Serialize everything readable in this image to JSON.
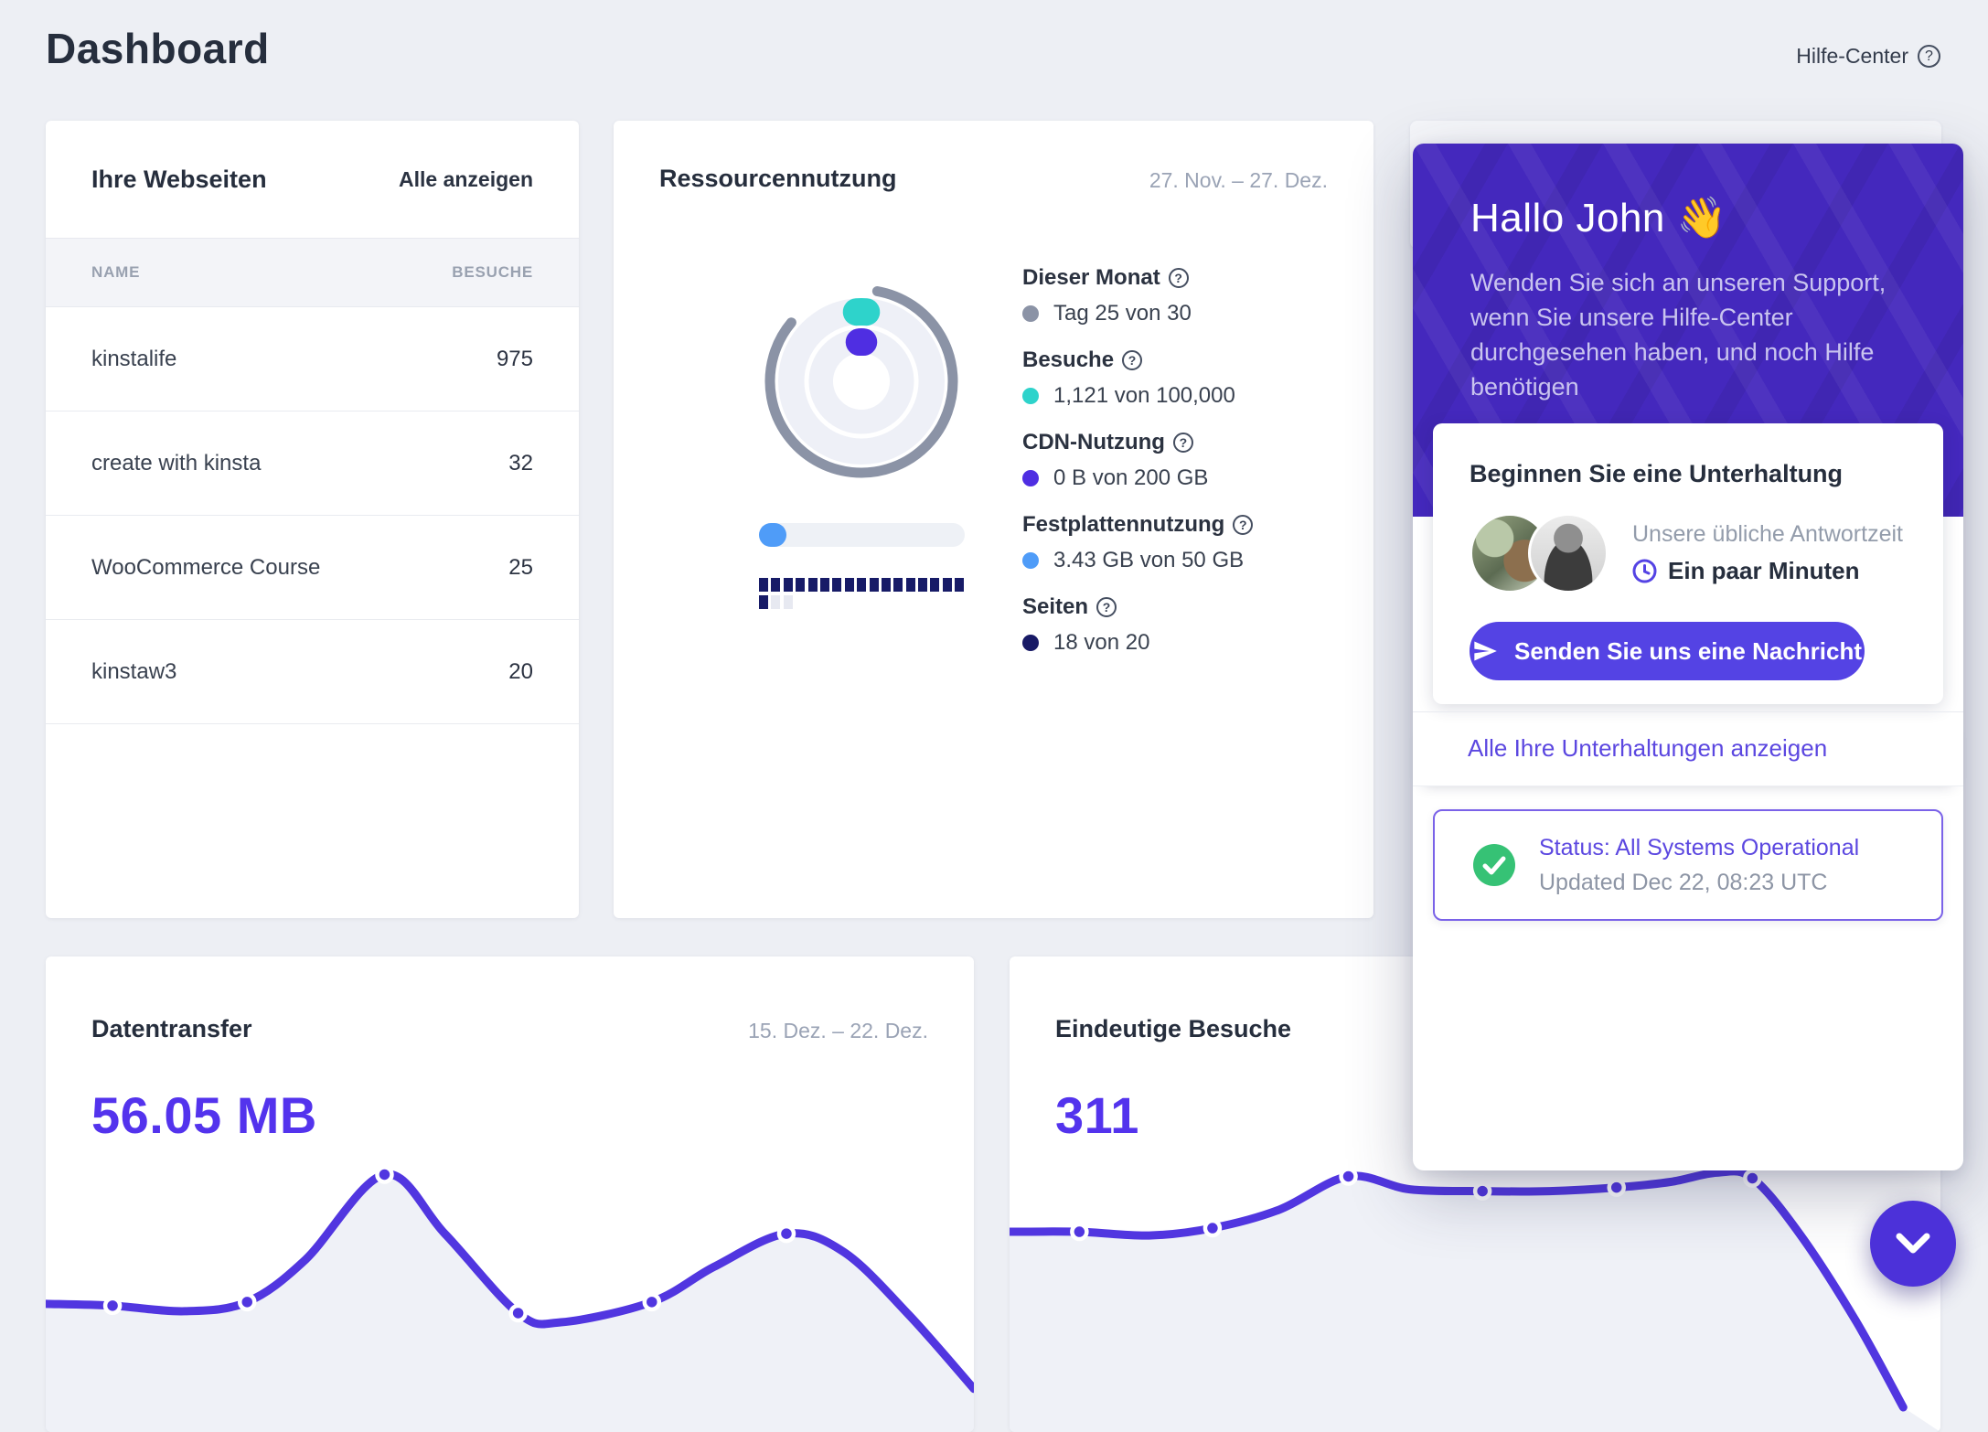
{
  "page": {
    "title": "Dashboard",
    "help_label": "Hilfe-Center"
  },
  "colors": {
    "accent_purple": "#5333ed",
    "chat_purple": "#4428bd",
    "button_purple": "#5443e4",
    "line_purple": "#5136e0",
    "status_green": "#36c275"
  },
  "websites_card": {
    "title": "Ihre Webseiten",
    "action": "Alle anzeigen",
    "columns": {
      "name": "NAME",
      "visits": "BESUCHE"
    },
    "rows": [
      {
        "name": "kinstalife",
        "visits": "975"
      },
      {
        "name": "create with kinsta",
        "visits": "32"
      },
      {
        "name": "WooCommerce Course",
        "visits": "25"
      },
      {
        "name": "kinstaw3",
        "visits": "20"
      }
    ]
  },
  "resources_card": {
    "title": "Ressourcennutzung",
    "date_range": "27. Nov. – 27. Dez.",
    "metrics": [
      {
        "label": "Dieser Monat",
        "value": "Tag 25 von 30",
        "color": "#8b93a6",
        "used": 25,
        "total": 30
      },
      {
        "label": "Besuche",
        "value": "1,121 von 100,000",
        "color": "#2ed3cb",
        "used": 1121,
        "total": 100000
      },
      {
        "label": "CDN-Nutzung",
        "value": "0 B von 200 GB",
        "color": "#4f2ee2",
        "used": 0,
        "total": 200
      },
      {
        "label": "Festplattennutzung",
        "value": "3.43 GB von 50 GB",
        "color": "#4f9cf8",
        "used": 3.43,
        "total": 50
      },
      {
        "label": "Seiten",
        "value": "18 von 20",
        "color": "#181a66",
        "used": 18,
        "total": 20
      }
    ]
  },
  "transfer_card": {
    "title": "Datentransfer",
    "date_range": "15. Dez. – 22. Dez.",
    "value": "56.05 MB"
  },
  "visits_card": {
    "title": "Eindeutige Besuche",
    "value": "311"
  },
  "chat_widget": {
    "greeting": "Hallo John 👋",
    "intro": "Wenden Sie sich an unseren Support, wenn Sie unsere Hilfe-Center durchgesehen haben, und noch Hilfe benötigen",
    "conversation": {
      "title": "Beginnen Sie eine Unterhaltung",
      "response_label": "Unsere übliche Antwortzeit",
      "response_time": "Ein paar Minuten",
      "button": "Senden Sie uns eine Nachricht"
    },
    "conversations_link": "Alle Ihre Unterhaltungen anzeigen",
    "status": {
      "line1": "Status: All Systems Operational",
      "line2": "Updated Dec 22, 08:23 UTC"
    }
  },
  "chart_data": [
    {
      "type": "radial",
      "title": "Ressourcennutzung",
      "period": "27. Nov. – 27. Dez.",
      "rings": [
        {
          "name": "Dieser Monat",
          "used": 25,
          "total": 30,
          "color": "#8b93a6"
        },
        {
          "name": "Besuche",
          "used": 1121,
          "total": 100000,
          "color": "#2ed3cb"
        },
        {
          "name": "CDN-Nutzung",
          "used": 0,
          "total": 200,
          "unit": "GB",
          "color": "#4f2ee2"
        }
      ],
      "bars": [
        {
          "name": "Festplattennutzung",
          "used": 3.43,
          "total": 50,
          "unit": "GB",
          "style": "progress",
          "color": "#4f9cf8"
        },
        {
          "name": "Seiten",
          "used": 18,
          "total": 20,
          "style": "segmented",
          "segments": 20,
          "wrap": 17,
          "color": "#171b67"
        }
      ]
    },
    {
      "type": "line",
      "title": "Datentransfer",
      "period": "15. Dez. – 22. Dez.",
      "total_label": "56.05 MB",
      "points_pct": [
        [
          0,
          92
        ],
        [
          7.2,
          93
        ],
        [
          15,
          96
        ],
        [
          21.7,
          91
        ],
        [
          28,
          68
        ],
        [
          36.5,
          22
        ],
        [
          43,
          54
        ],
        [
          50.9,
          97
        ],
        [
          55.5,
          102
        ],
        [
          65.3,
          91
        ],
        [
          72,
          72
        ],
        [
          79.8,
          54
        ],
        [
          86,
          64
        ],
        [
          93,
          98
        ],
        [
          100,
          138
        ]
      ],
      "dots_pct": [
        [
          7.2,
          93
        ],
        [
          21.7,
          91
        ],
        [
          36.5,
          22
        ],
        [
          50.9,
          97
        ],
        [
          65.3,
          91
        ],
        [
          79.8,
          54
        ]
      ]
    },
    {
      "type": "line",
      "title": "Eindeutige Besuche",
      "total_label": "311",
      "points_pct": [
        [
          0,
          53
        ],
        [
          7.5,
          53
        ],
        [
          15,
          55
        ],
        [
          21.8,
          51
        ],
        [
          29,
          41
        ],
        [
          36.4,
          23
        ],
        [
          43,
          30
        ],
        [
          50.8,
          31
        ],
        [
          58,
          31
        ],
        [
          65.2,
          29
        ],
        [
          71,
          26
        ],
        [
          76,
          21
        ],
        [
          79.8,
          24
        ],
        [
          85,
          55
        ],
        [
          91,
          102
        ],
        [
          96,
          148
        ]
      ],
      "dots_pct": [
        [
          7.5,
          53
        ],
        [
          21.8,
          51
        ],
        [
          36.4,
          23
        ],
        [
          50.8,
          31
        ],
        [
          65.2,
          29
        ],
        [
          79.8,
          24
        ]
      ]
    }
  ]
}
